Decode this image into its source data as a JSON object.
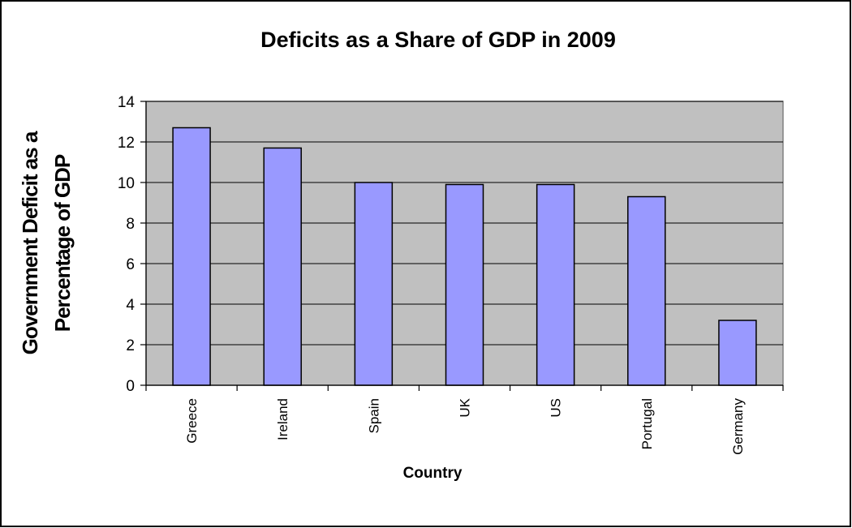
{
  "chart_data": {
    "type": "bar",
    "title": "Deficits as a Share of GDP in 2009",
    "xlabel": "Country",
    "ylabel": [
      "Government Deficit as a",
      "Percentage of GDP"
    ],
    "categories": [
      "Greece",
      "Ireland",
      "Spain",
      "UK",
      "US",
      "Portugal",
      "Germany"
    ],
    "values": [
      12.7,
      11.7,
      10.0,
      9.9,
      9.9,
      9.3,
      3.2
    ],
    "ylim": [
      0,
      14
    ],
    "yticks": [
      0,
      2,
      4,
      6,
      8,
      10,
      12,
      14
    ],
    "grid": true,
    "legend": "none",
    "colors": {
      "bar": "#9999ff",
      "plot_background": "#c0c0c0"
    }
  }
}
